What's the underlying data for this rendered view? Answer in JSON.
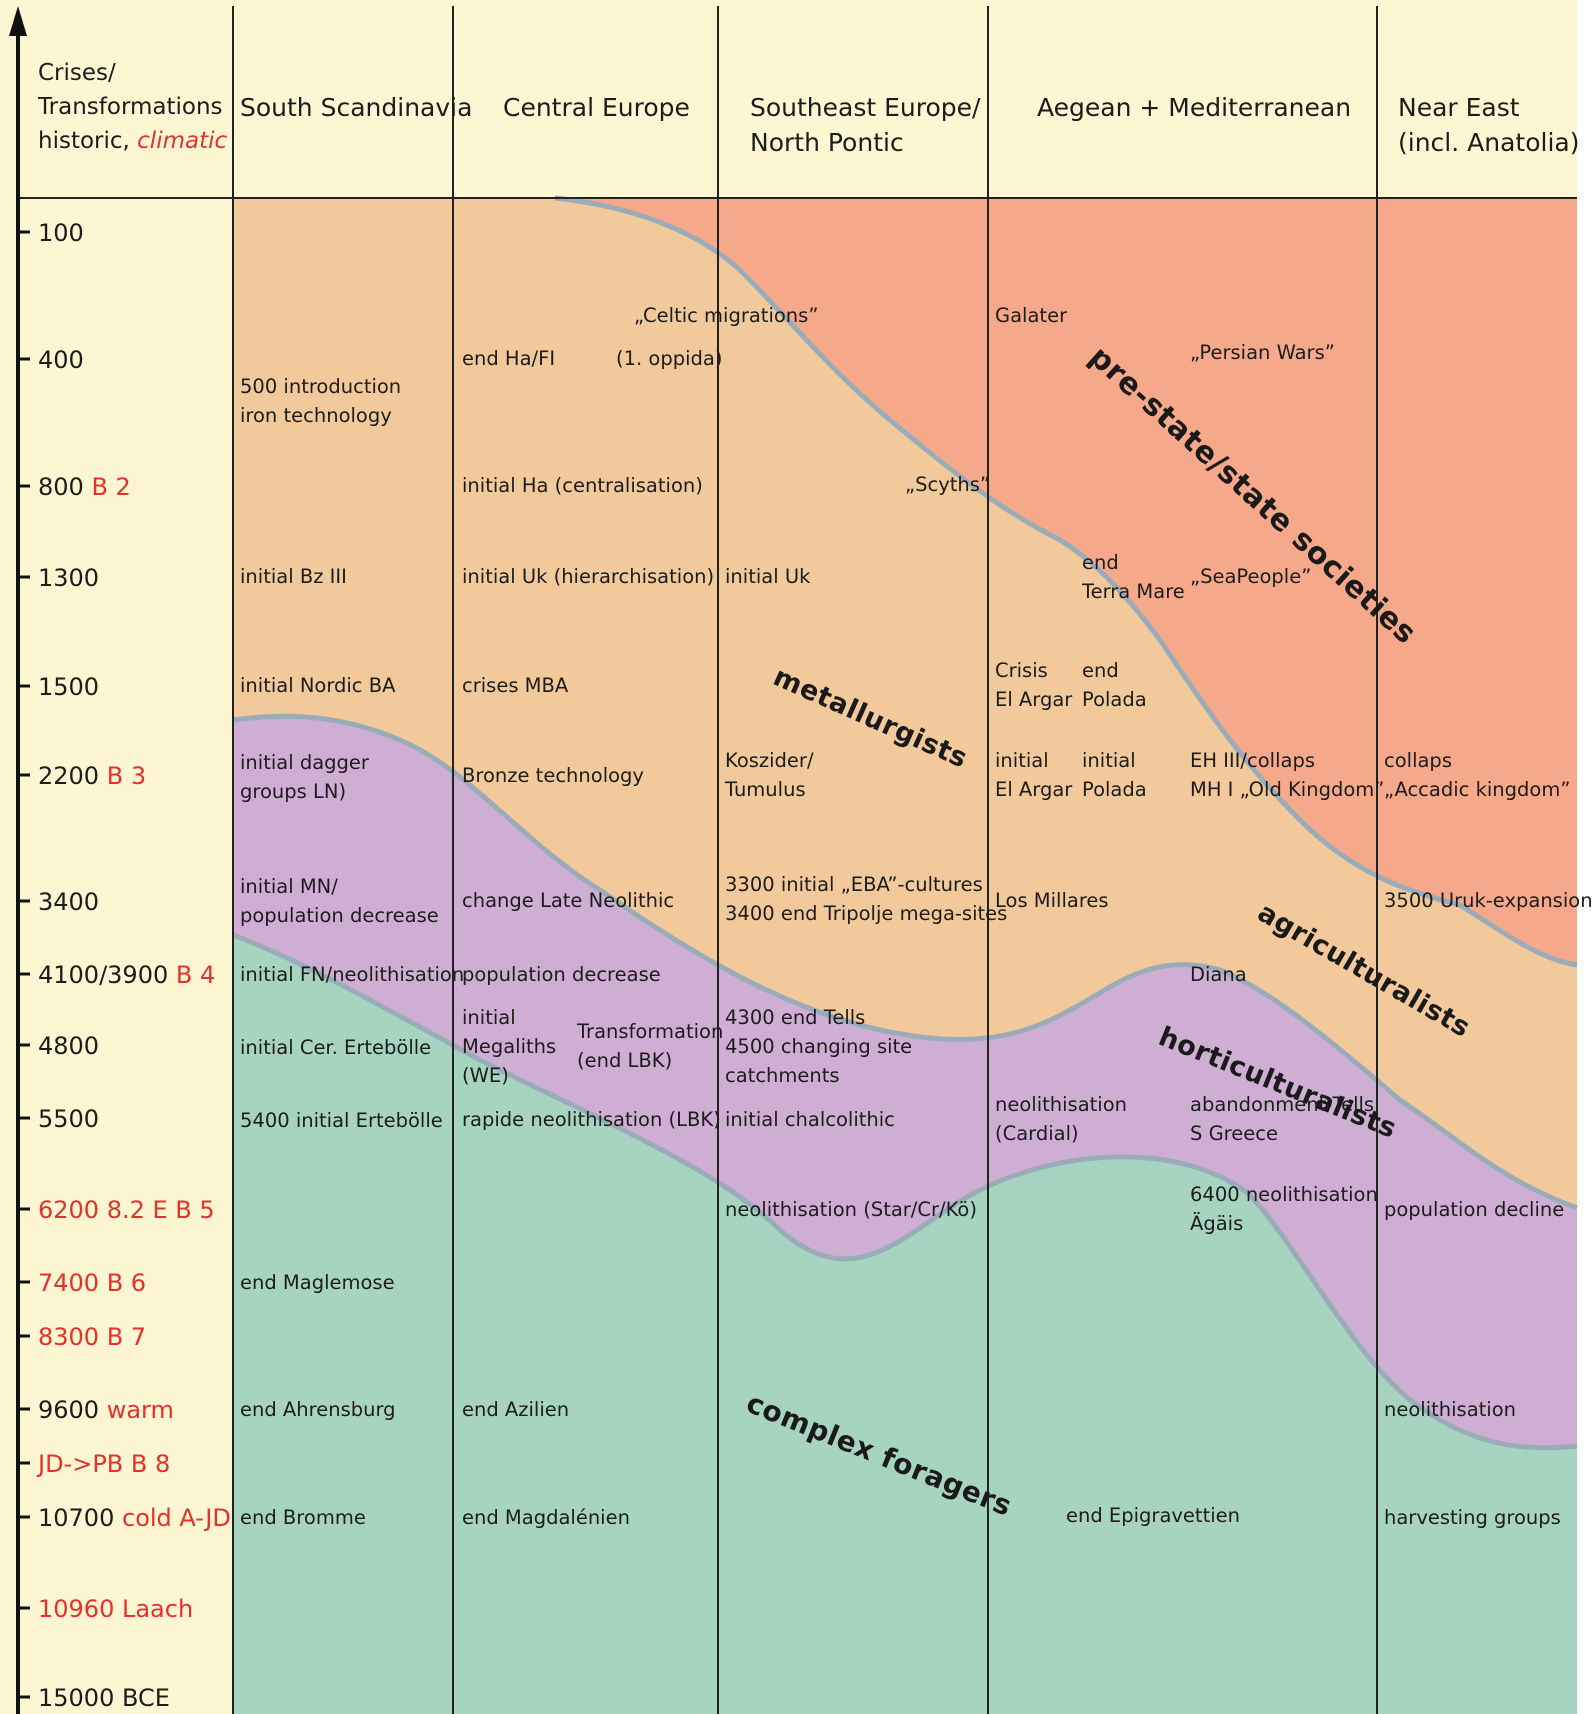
{
  "header": {
    "left_label": {
      "line1": "Crises/",
      "line2": "Transformations",
      "line3_black": "historic, ",
      "line3_red": "climatic"
    },
    "columns": [
      {
        "line1": "South Scandinavia",
        "line2": ""
      },
      {
        "line1": "Central Europe",
        "line2": ""
      },
      {
        "line1": "Southeast Europe/",
        "line2": "North Pontic"
      },
      {
        "line1": "Aegean + Mediterranean",
        "line2": ""
      },
      {
        "line1": "Near East",
        "line2": "(incl. Anatolia)"
      }
    ]
  },
  "timeline": [
    {
      "year": "100",
      "event": ""
    },
    {
      "year": "400",
      "event": ""
    },
    {
      "year": "800",
      "event": "B 2"
    },
    {
      "year": "1300",
      "event": ""
    },
    {
      "year": "1500",
      "event": ""
    },
    {
      "year": "2200",
      "event": "B 3"
    },
    {
      "year": "3400",
      "event": ""
    },
    {
      "year": "4100/3900",
      "event": "B 4"
    },
    {
      "year": "4800",
      "event": ""
    },
    {
      "year": "5500",
      "event": ""
    },
    {
      "year": "",
      "event": "6200 8.2 E B 5"
    },
    {
      "year": "",
      "event": "7400 B 6"
    },
    {
      "year": "",
      "event": "8300 B 7"
    },
    {
      "year": "9600",
      "event": "warm"
    },
    {
      "year": "",
      "event": "JD->PB  B 8"
    },
    {
      "year": "10700",
      "event": "cold A-JD"
    },
    {
      "year": "",
      "event": "10960 Laach"
    },
    {
      "year": "15000 BCE",
      "event": ""
    }
  ],
  "zones": {
    "state": "pre-state/state societies",
    "metallurgists": "metallurgists",
    "agriculturalists": "agriculturalists",
    "horticulturalists": "horticulturalists",
    "foragers": "complex foragers"
  },
  "entries": {
    "scandinavia": {
      "iron": [
        "500 introduction",
        "iron technology"
      ],
      "bz3": [
        "initial Bz III"
      ],
      "nordic_ba": [
        "initial Nordic BA"
      ],
      "dagger": [
        "initial dagger",
        "groups LN)"
      ],
      "mn": [
        "initial MN/",
        "population decrease"
      ],
      "fn": [
        "initial FN/neolithisation"
      ],
      "ertebolle_cer": [
        "initial Cer. Ertebölle"
      ],
      "ertebolle_5400": [
        "5400 initial Ertebölle"
      ],
      "maglemose": [
        "end Maglemose"
      ],
      "ahrensburg": [
        "end  Ahrensburg"
      ],
      "bromme": [
        "end Bromme"
      ]
    },
    "central": {
      "celtic": [
        "„Celtic migrations”"
      ],
      "ha_fi": [
        "end Ha/FI"
      ],
      "oppida": [
        "(1. oppida)"
      ],
      "ha": [
        "initial Ha (centralisation)"
      ],
      "uk": [
        "initial Uk (hierarchisation)"
      ],
      "mba": [
        "crises MBA"
      ],
      "bronze": [
        "Bronze technology"
      ],
      "late_neo": [
        "change Late Neolithic"
      ],
      "pop_dec": [
        "population decrease"
      ],
      "megaliths": [
        "initial",
        "Megaliths",
        "(WE)"
      ],
      "transformation": [
        "Transformation",
        "(end LBK)"
      ],
      "rapide": [
        "rapide neolithisation (LBK)"
      ],
      "azilien": [
        "end Azilien"
      ],
      "magdalenien": [
        "end Magdalénien"
      ]
    },
    "southeast": {
      "scyths": [
        "„Scyths”"
      ],
      "uk": [
        "initial Uk"
      ],
      "koszider": [
        "Koszider/",
        "Tumulus"
      ],
      "eba": [
        "3300 initial „EBA”-cultures",
        "3400 end Tripolje mega-sites"
      ],
      "tells": [
        "4300 end Tells",
        "4500 changing site",
        "catchments"
      ],
      "chalcolithic": [
        "initial chalcolithic"
      ],
      "star": [
        "neolithisation (Star/Cr/Kö)"
      ]
    },
    "aegean": {
      "galater": [
        "Galater"
      ],
      "persian": [
        "„Persian Wars”"
      ],
      "terramare": [
        "end",
        "Terra Mare"
      ],
      "seapeople": [
        "„SeaPeople”"
      ],
      "crisis_argar": [
        "Crisis",
        "El Argar"
      ],
      "end_polada": [
        "end",
        "Polada"
      ],
      "init_argar": [
        "initial",
        "El Argar"
      ],
      "init_polada": [
        "initial",
        "Polada"
      ],
      "eh3": [
        "EH III/collaps",
        "MH I „Old Kingdom”"
      ],
      "millares": [
        "Los Millares"
      ],
      "diana": [
        "Diana"
      ],
      "cardial": [
        "neolithisation",
        "(Cardial)"
      ],
      "abandon": [
        "abandonment Tells",
        "S Greece"
      ],
      "agais": [
        "6400 neolithisation",
        "Ägäis"
      ],
      "epigravettien": [
        "end Epigravettien"
      ]
    },
    "neareast": {
      "accadic": [
        "collaps",
        "„Accadic kingdom”"
      ],
      "uruk": [
        "3500 Uruk-expansion"
      ],
      "pop_decline": [
        "population decline"
      ],
      "neolithisation": [
        "neolithisation"
      ],
      "harvesting": [
        "harvesting groups"
      ]
    }
  },
  "colors": {
    "header_bg": "#fdf6d3",
    "state": "#f6a98a",
    "agri": "#f1c99b",
    "horti": "#cfaed4",
    "forager": "#a7d3c1",
    "boundary": "#9aacb8",
    "red": "#e8302a"
  }
}
